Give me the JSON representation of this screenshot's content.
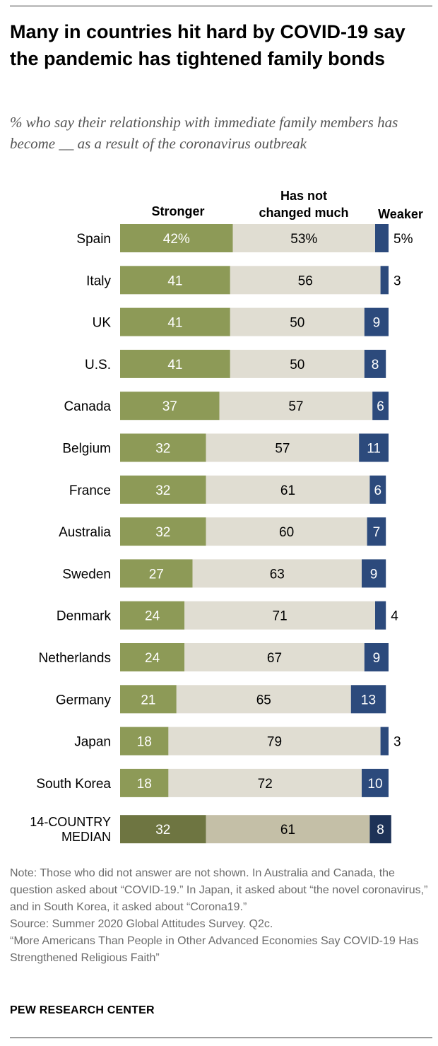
{
  "title": "Many in countries hit hard by COVID-19 say the pandemic has tightened family bonds",
  "subtitle": "% who say their relationship with immediate family members has become __ as a result of the coronavirus outbreak",
  "notes": {
    "note": "Note: Those who did not answer are not shown. In Australia and Canada, the question asked about “COVID-19.” In Japan, it asked about “the novel coronavirus,” and in South Korea, it asked about “Corona19.”",
    "source": "Source: Summer 2020 Global Attitudes Survey. Q2c.",
    "report": "“More Americans Than People in Other Advanced Economies Say COVID-19 Has Strengthened Religious Faith”"
  },
  "brand": "PEW RESEARCH CENTER",
  "chart_data": {
    "type": "bar",
    "orientation": "horizontal-stacked",
    "categories": [
      "Spain",
      "Italy",
      "UK",
      "U.S.",
      "Canada",
      "Belgium",
      "France",
      "Australia",
      "Sweden",
      "Denmark",
      "Netherlands",
      "Germany",
      "Japan",
      "South Korea",
      "14-COUNTRY MEDIAN"
    ],
    "series": [
      {
        "name": "Stronger",
        "color": "#8d9a57",
        "values": [
          42,
          41,
          41,
          41,
          37,
          32,
          32,
          32,
          27,
          24,
          24,
          21,
          18,
          18,
          32
        ]
      },
      {
        "name": "Has not changed much",
        "color": "#e0ddd2",
        "values": [
          53,
          56,
          50,
          50,
          57,
          57,
          61,
          60,
          63,
          71,
          67,
          65,
          79,
          72,
          61
        ]
      },
      {
        "name": "Weaker",
        "color": "#2c4a7c",
        "values": [
          5,
          3,
          9,
          8,
          6,
          11,
          6,
          7,
          9,
          4,
          9,
          13,
          3,
          10,
          8
        ]
      }
    ],
    "value_labels": [
      [
        "42%",
        "53%",
        "5%"
      ],
      [
        "41",
        "56",
        "3"
      ],
      [
        "41",
        "50",
        "9"
      ],
      [
        "41",
        "50",
        "8"
      ],
      [
        "37",
        "57",
        "6"
      ],
      [
        "32",
        "57",
        "11"
      ],
      [
        "32",
        "61",
        "6"
      ],
      [
        "32",
        "60",
        "7"
      ],
      [
        "27",
        "63",
        "9"
      ],
      [
        "24",
        "71",
        "4"
      ],
      [
        "24",
        "67",
        "9"
      ],
      [
        "21",
        "65",
        "13"
      ],
      [
        "18",
        "79",
        "3"
      ],
      [
        "18",
        "72",
        "10"
      ],
      [
        "32",
        "61",
        "8"
      ]
    ],
    "median_colors": [
      "#6e7541",
      "#c4bfa7",
      "#1d3257"
    ],
    "headers": [
      "Stronger",
      "Has not changed much",
      "Weaker"
    ],
    "xlim": [
      0,
      100
    ],
    "legend": "top",
    "grid": false
  }
}
